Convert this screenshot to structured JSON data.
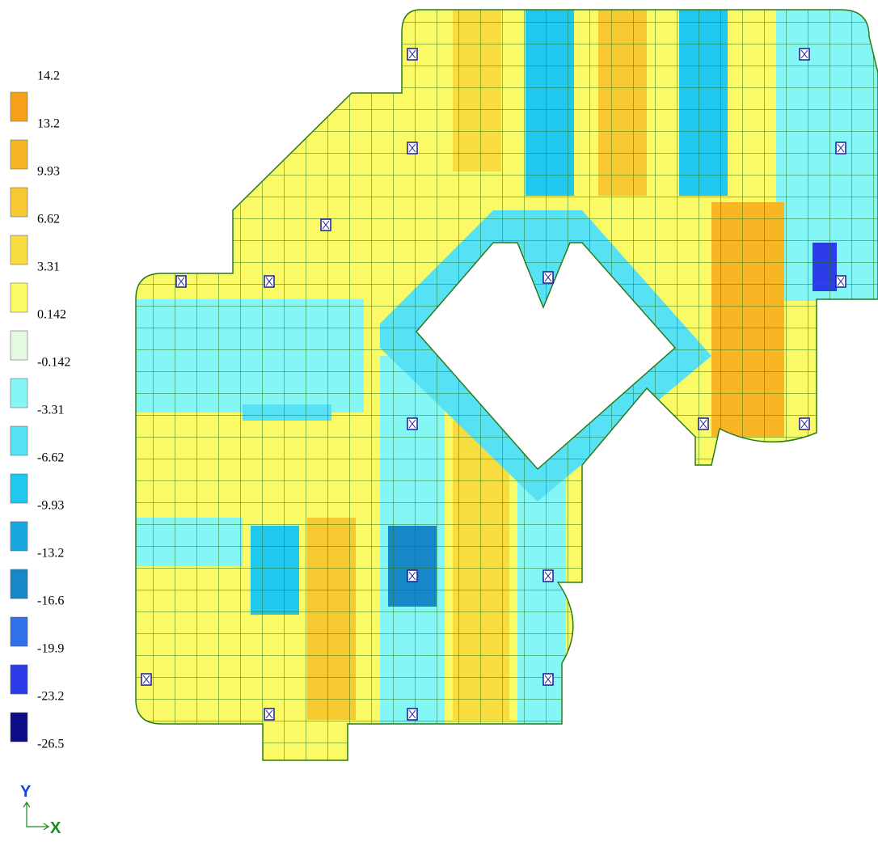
{
  "legend": {
    "labels": [
      "14.2",
      "13.2",
      "9.93",
      "6.62",
      "3.31",
      "0.142",
      "-0.142",
      "-3.31",
      "-6.62",
      "-9.93",
      "-13.2",
      "-16.6",
      "-19.9",
      "-23.2",
      "-26.5"
    ],
    "colors": [
      "#f59f1a",
      "#f8b524",
      "#f8c832",
      "#f9dc40",
      "#fafa66",
      "#e4fae0",
      "#84f6f6",
      "#56e2f4",
      "#20c8f0",
      "#16a8de",
      "#1688c8",
      "#3070ea",
      "#2c3ce8",
      "#0c0c88"
    ]
  },
  "axes": {
    "y_label": "Y",
    "x_label": "X"
  }
}
